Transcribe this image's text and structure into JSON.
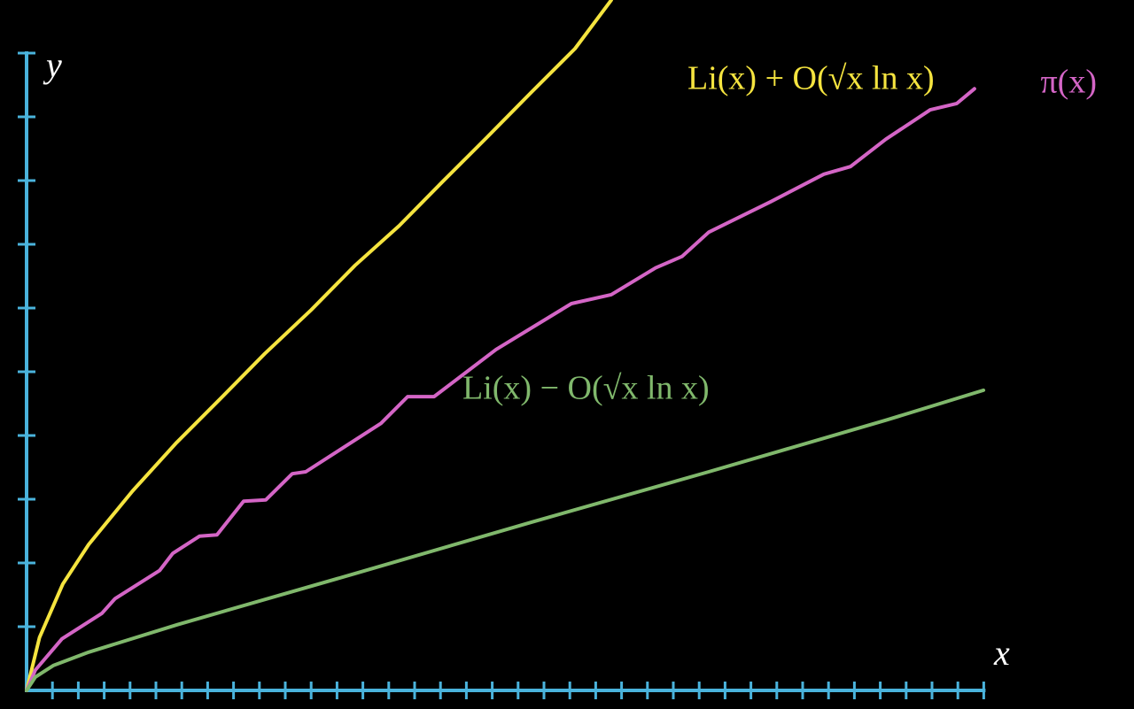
{
  "chart_data": {
    "type": "line",
    "x_label": "x",
    "y_label": "y",
    "xlim": [
      0,
      37
    ],
    "ylim": [
      0,
      10
    ],
    "xticks": [
      1,
      2,
      3,
      4,
      5,
      6,
      7,
      8,
      9,
      10,
      11,
      12,
      13,
      14,
      15,
      16,
      17,
      18,
      19,
      20,
      21,
      22,
      23,
      24,
      25,
      26,
      27,
      28,
      29,
      30,
      31,
      32,
      33,
      34,
      35,
      36,
      37
    ],
    "yticks": [
      1,
      2,
      3,
      4,
      5,
      6,
      7,
      8,
      9,
      10
    ],
    "axis_color": "#4ab3dc",
    "series": [
      {
        "name": "Li(x) + O(√x ln x)",
        "color": "#f5e43f",
        "x": [
          0,
          0.5,
          1.4,
          2.4,
          4.1,
          5.8,
          7.5,
          9.2,
          11,
          12.7,
          14.4,
          16.1,
          17.8,
          19.5,
          21.2,
          22.6
        ],
        "values": [
          0,
          0.83,
          1.67,
          2.29,
          3.13,
          3.89,
          4.58,
          5.28,
          5.97,
          6.67,
          7.29,
          7.99,
          8.68,
          9.38,
          10.07,
          10.83
        ]
      },
      {
        "name": "π(x)",
        "color": "#d465c6",
        "x": [
          0,
          0.34,
          1.37,
          2.91,
          3.42,
          5.14,
          5.65,
          6.68,
          7.36,
          8.39,
          9.25,
          10.27,
          10.79,
          13.7,
          14.73,
          15.75,
          18.15,
          21.06,
          22.6,
          24.32,
          25.34,
          26.37,
          28.77,
          30.82,
          31.85,
          33.22,
          34.93,
          35.96,
          36.64
        ],
        "values": [
          0,
          0.32,
          0.81,
          1.21,
          1.44,
          1.88,
          2.15,
          2.42,
          2.44,
          2.97,
          2.99,
          3.4,
          3.43,
          4.19,
          4.61,
          4.61,
          5.35,
          6.07,
          6.21,
          6.63,
          6.81,
          7.19,
          7.67,
          8.1,
          8.22,
          8.65,
          9.11,
          9.21,
          9.44
        ]
      },
      {
        "name": "Li(x) − O(√x ln x)",
        "color": "#80b86c",
        "x": [
          0,
          0.34,
          1.03,
          2.4,
          5.82,
          12.67,
          19.52,
          26.37,
          33.22,
          36.99
        ],
        "values": [
          0,
          0.21,
          0.39,
          0.6,
          1.03,
          1.83,
          2.64,
          3.43,
          4.24,
          4.71
        ]
      }
    ]
  }
}
